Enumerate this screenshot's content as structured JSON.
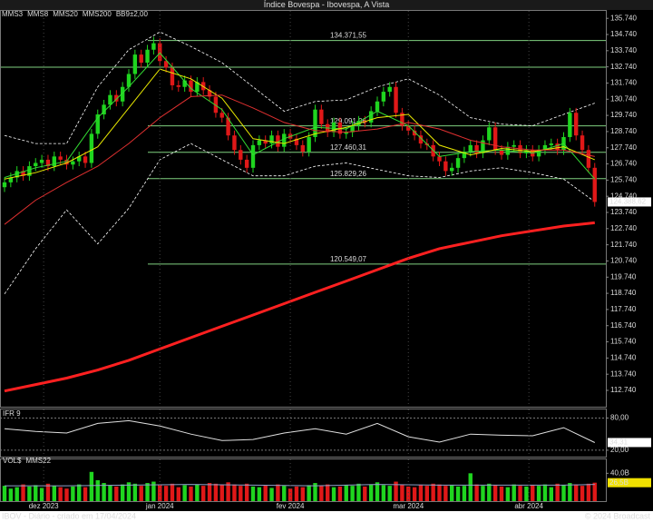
{
  "header": {
    "title": "Índice Bovespa - Ibovespa, A Vista"
  },
  "footer": {
    "left": "IBOV - Diário - criado em 17/04/2024",
    "right": "© 2024 Broadcast"
  },
  "chart_data": [
    {
      "type": "candlestick",
      "up_color": "#1fd51f",
      "down_color": "#e01818",
      "ylim": [
        111730,
        136200
      ],
      "yticks": [
        {
          "value": 112740,
          "label": "112.740"
        },
        {
          "value": 113740,
          "label": "113.740"
        },
        {
          "value": 114740,
          "label": "114.740"
        },
        {
          "value": 115740,
          "label": "115.740"
        },
        {
          "value": 116740,
          "label": "116.740"
        },
        {
          "value": 117740,
          "label": "117.740"
        },
        {
          "value": 118740,
          "label": "118.740"
        },
        {
          "value": 119740,
          "label": "119.740"
        },
        {
          "value": 120740,
          "label": "120.740"
        },
        {
          "value": 121740,
          "label": "121.740"
        },
        {
          "value": 122740,
          "label": "122.740"
        },
        {
          "value": 123740,
          "label": "123.740"
        },
        {
          "value": 124740,
          "label": "124.740"
        },
        {
          "value": 125740,
          "label": "125.740"
        },
        {
          "value": 126740,
          "label": "126.740"
        },
        {
          "value": 127740,
          "label": "127.740"
        },
        {
          "value": 128740,
          "label": "128.740"
        },
        {
          "value": 129740,
          "label": "129.740"
        },
        {
          "value": 130740,
          "label": "130.740"
        },
        {
          "value": 131740,
          "label": "131.740"
        },
        {
          "value": 132740,
          "label": "132.740"
        },
        {
          "value": 133740,
          "label": "133.740"
        },
        {
          "value": 134740,
          "label": "134.740"
        },
        {
          "value": 135740,
          "label": "135.740"
        }
      ],
      "levels": [
        {
          "value": 134371.55,
          "label": "134.371,55"
        },
        132720,
        {
          "value": 129091.06,
          "label": "129.091,06"
        },
        {
          "value": 127460.31,
          "label": "127.460,31"
        },
        {
          "value": 125829.26,
          "label": "125.829,26"
        },
        {
          "value": 120549.07,
          "label": "120.549,07"
        }
      ],
      "level_color": "#7fd07f",
      "candles": [
        [
          125300,
          125900,
          125000,
          125600
        ],
        [
          125600,
          126200,
          125300,
          125900
        ],
        [
          125900,
          126600,
          125600,
          126300
        ],
        [
          126300,
          126600,
          125700,
          126000
        ],
        [
          126000,
          126900,
          125700,
          126600
        ],
        [
          126600,
          127100,
          126300,
          126800
        ],
        [
          126800,
          127300,
          126500,
          127000
        ],
        [
          127000,
          127300,
          126300,
          126600
        ],
        [
          126600,
          127500,
          126300,
          127200
        ],
        [
          127200,
          127500,
          126700,
          127000
        ],
        [
          127000,
          127300,
          126400,
          126700
        ],
        [
          126700,
          127200,
          126400,
          126900
        ],
        [
          126900,
          127500,
          126600,
          127200
        ],
        [
          127200,
          127500,
          126500,
          126800
        ],
        [
          126800,
          128900,
          126500,
          128600
        ],
        [
          128600,
          130100,
          128300,
          129800
        ],
        [
          129800,
          130700,
          129500,
          130400
        ],
        [
          130400,
          131300,
          130100,
          131000
        ],
        [
          131000,
          131300,
          130300,
          130600
        ],
        [
          130600,
          131800,
          130300,
          131500
        ],
        [
          131500,
          132600,
          131200,
          132300
        ],
        [
          132300,
          133800,
          132000,
          133500
        ],
        [
          133500,
          133800,
          132700,
          133000
        ],
        [
          133000,
          134100,
          132700,
          133800
        ],
        [
          133800,
          134600,
          133500,
          134200
        ],
        [
          134200,
          134500,
          132800,
          133100
        ],
        [
          133100,
          133400,
          132400,
          132700
        ],
        [
          132700,
          133000,
          131300,
          131600
        ],
        [
          131600,
          131900,
          131200,
          131500
        ],
        [
          131500,
          132200,
          131200,
          131900
        ],
        [
          131900,
          132200,
          130900,
          131200
        ],
        [
          131200,
          132100,
          130900,
          131800
        ],
        [
          131800,
          132100,
          131000,
          131300
        ],
        [
          131300,
          131600,
          130600,
          130900
        ],
        [
          130900,
          131200,
          129600,
          129900
        ],
        [
          129900,
          130200,
          129300,
          129600
        ],
        [
          129600,
          129900,
          128200,
          128500
        ],
        [
          128500,
          128800,
          127300,
          127600
        ],
        [
          127600,
          127900,
          126700,
          127000
        ],
        [
          127000,
          127300,
          126200,
          126500
        ],
        [
          126500,
          128200,
          126200,
          127900
        ],
        [
          127900,
          128500,
          127600,
          128200
        ],
        [
          128200,
          128500,
          127700,
          128000
        ],
        [
          128000,
          128800,
          127700,
          128500
        ],
        [
          128500,
          128800,
          127500,
          127800
        ],
        [
          127800,
          128900,
          127500,
          128600
        ],
        [
          128600,
          128900,
          128000,
          128300
        ],
        [
          128300,
          128600,
          127600,
          127900
        ],
        [
          127900,
          128200,
          127200,
          127500
        ],
        [
          127500,
          128700,
          127200,
          128400
        ],
        [
          128400,
          130400,
          128100,
          130100
        ],
        [
          130100,
          130400,
          128900,
          129200
        ],
        [
          129200,
          129500,
          128400,
          128700
        ],
        [
          128700,
          129600,
          128400,
          129300
        ],
        [
          129300,
          129600,
          128300,
          128600
        ],
        [
          128600,
          129000,
          128300,
          128700
        ],
        [
          128700,
          129400,
          128400,
          129100
        ],
        [
          129100,
          129700,
          128800,
          129400
        ],
        [
          129400,
          129700,
          129000,
          129300
        ],
        [
          129300,
          130300,
          129000,
          130000
        ],
        [
          130000,
          130900,
          129700,
          130600
        ],
        [
          130600,
          131500,
          130300,
          131200
        ],
        [
          131200,
          131800,
          130900,
          131500
        ],
        [
          131500,
          131800,
          129600,
          129900
        ],
        [
          129900,
          130200,
          128800,
          129100
        ],
        [
          129100,
          129400,
          128500,
          128800
        ],
        [
          128800,
          129100,
          128200,
          128500
        ],
        [
          128500,
          128800,
          127700,
          128000
        ],
        [
          128000,
          128300,
          127600,
          127900
        ],
        [
          127900,
          128200,
          126900,
          127200
        ],
        [
          127200,
          127500,
          126600,
          126900
        ],
        [
          126900,
          127200,
          126000,
          126300
        ],
        [
          126300,
          126800,
          126000,
          126500
        ],
        [
          126500,
          127400,
          126200,
          127100
        ],
        [
          127100,
          127800,
          126800,
          127500
        ],
        [
          127500,
          128200,
          127200,
          127900
        ],
        [
          127900,
          128200,
          127100,
          127400
        ],
        [
          127400,
          128500,
          127100,
          128200
        ],
        [
          128200,
          129300,
          127900,
          129000
        ],
        [
          129000,
          129300,
          127300,
          127600
        ],
        [
          127600,
          127900,
          127000,
          127300
        ],
        [
          127300,
          128100,
          127000,
          127800
        ],
        [
          127800,
          128200,
          127500,
          127900
        ],
        [
          127900,
          128200,
          127100,
          127400
        ],
        [
          127400,
          127900,
          127100,
          127600
        ],
        [
          127600,
          127900,
          126900,
          127200
        ],
        [
          127200,
          127900,
          126900,
          127600
        ],
        [
          127600,
          128200,
          127300,
          127900
        ],
        [
          127900,
          128300,
          127600,
          128000
        ],
        [
          128000,
          128300,
          127300,
          127600
        ],
        [
          127600,
          128700,
          127300,
          128400
        ],
        [
          128400,
          130200,
          128100,
          129900
        ],
        [
          129900,
          130200,
          128200,
          128500
        ],
        [
          128500,
          128800,
          127300,
          127600
        ],
        [
          127600,
          127900,
          126200,
          126500
        ],
        [
          126500,
          126800,
          124100,
          124388.62
        ]
      ],
      "last_label": "124.388,62",
      "overlay_x": [
        0,
        5,
        10,
        15,
        20,
        25,
        30,
        35,
        40,
        45,
        50,
        55,
        60,
        65,
        70,
        75,
        80,
        85,
        90,
        95
      ],
      "overlays": [
        {
          "name": "MMS3",
          "color": "#33dd33",
          "line_width": 1,
          "values": [
            125900,
            126500,
            126900,
            129600,
            131500,
            133600,
            131400,
            130100,
            127300,
            128300,
            129000,
            128900,
            130000,
            129100,
            127200,
            127500,
            127600,
            127400,
            128000,
            125800
          ]
        },
        {
          "name": "MMS8",
          "color": "#e8e800",
          "line_width": 1,
          "values": [
            125800,
            126200,
            126800,
            127800,
            130200,
            132600,
            132000,
            130800,
            128300,
            128000,
            128600,
            129000,
            129600,
            129800,
            127900,
            127300,
            127700,
            127500,
            127800,
            127000
          ]
        },
        {
          "name": "MMS20",
          "color": "#e03030",
          "line_width": 1,
          "values": [
            123000,
            124500,
            125600,
            126600,
            128000,
            129600,
            130900,
            131000,
            130200,
            129300,
            128800,
            128700,
            128900,
            129300,
            128900,
            128200,
            127800,
            127600,
            127600,
            127200
          ]
        },
        {
          "name": "MMS200",
          "color": "#ff2020",
          "line_width": 3,
          "values": [
            112700,
            113100,
            113500,
            114000,
            114600,
            115300,
            116000,
            116700,
            117400,
            118100,
            118800,
            119500,
            120200,
            120900,
            121500,
            121900,
            122300,
            122600,
            122900,
            123100
          ]
        }
      ],
      "bands": {
        "name": "BB9±2,00",
        "color": "#ffffff",
        "upper": [
          128500,
          128000,
          128000,
          131500,
          133800,
          134900,
          134000,
          133000,
          131500,
          130000,
          130600,
          130700,
          131500,
          132000,
          131000,
          129600,
          129200,
          129100,
          129800,
          130500
        ],
        "lower": [
          118700,
          121500,
          123900,
          121800,
          124000,
          127000,
          128000,
          127000,
          126000,
          126000,
          126600,
          126800,
          126400,
          126000,
          125900,
          126300,
          126500,
          126200,
          125800,
          124400
        ]
      }
    },
    {
      "type": "line",
      "title": "IFR 9",
      "color": "#e0e0e0",
      "ylim": [
        8,
        96
      ],
      "yticks": [
        {
          "value": 80,
          "label": "80,00"
        },
        {
          "value": 20,
          "label": "20,00"
        }
      ],
      "x": [
        0,
        5,
        10,
        15,
        20,
        25,
        30,
        35,
        40,
        45,
        50,
        55,
        60,
        65,
        70,
        75,
        80,
        85,
        90,
        95
      ],
      "values": [
        60,
        55,
        52,
        70,
        75,
        65,
        50,
        38,
        40,
        52,
        60,
        50,
        70,
        45,
        35,
        50,
        48,
        47,
        62,
        34.31
      ],
      "last_label": "34,31"
    },
    {
      "type": "bar",
      "title": "VOL$",
      "title_color": "#33dd33",
      "ylim": [
        0,
        60
      ],
      "yticks": [
        {
          "value": 40,
          "label": "40,0B"
        }
      ],
      "values": [
        22,
        18,
        20,
        24,
        21,
        23,
        19,
        25,
        22,
        20,
        18,
        21,
        24,
        20,
        42,
        30,
        26,
        23,
        21,
        24,
        27,
        25,
        22,
        26,
        28,
        24,
        22,
        25,
        20,
        23,
        21,
        24,
        22,
        26,
        25,
        23,
        27,
        24,
        22,
        25,
        21,
        20,
        23,
        19,
        24,
        22,
        18,
        21,
        20,
        23,
        26,
        22,
        24,
        20,
        21,
        23,
        22,
        25,
        21,
        24,
        27,
        23,
        22,
        28,
        24,
        21,
        20,
        23,
        22,
        25,
        24,
        22,
        23,
        21,
        22,
        40,
        24,
        22,
        25,
        23,
        21,
        20,
        24,
        22,
        21,
        23,
        22,
        24,
        20,
        25,
        23,
        26,
        24,
        22,
        25,
        26.5
      ],
      "last_label": "26,5B",
      "average": {
        "name": "MMS22",
        "color": "#8fa0c8",
        "x": [
          0,
          10,
          20,
          30,
          40,
          50,
          60,
          70,
          80,
          90,
          95
        ],
        "values": [
          22,
          22,
          23,
          24,
          23,
          22,
          24,
          23,
          23,
          23,
          24
        ]
      },
      "xticks": [
        {
          "value": 6.3,
          "label": "dez 2023"
        },
        {
          "value": 25,
          "label": "jan 2024"
        },
        {
          "value": 46,
          "label": "fev 2024"
        },
        {
          "value": 65,
          "label": "mar 2024"
        },
        {
          "value": 84.4,
          "label": "abr 2024"
        }
      ]
    }
  ]
}
